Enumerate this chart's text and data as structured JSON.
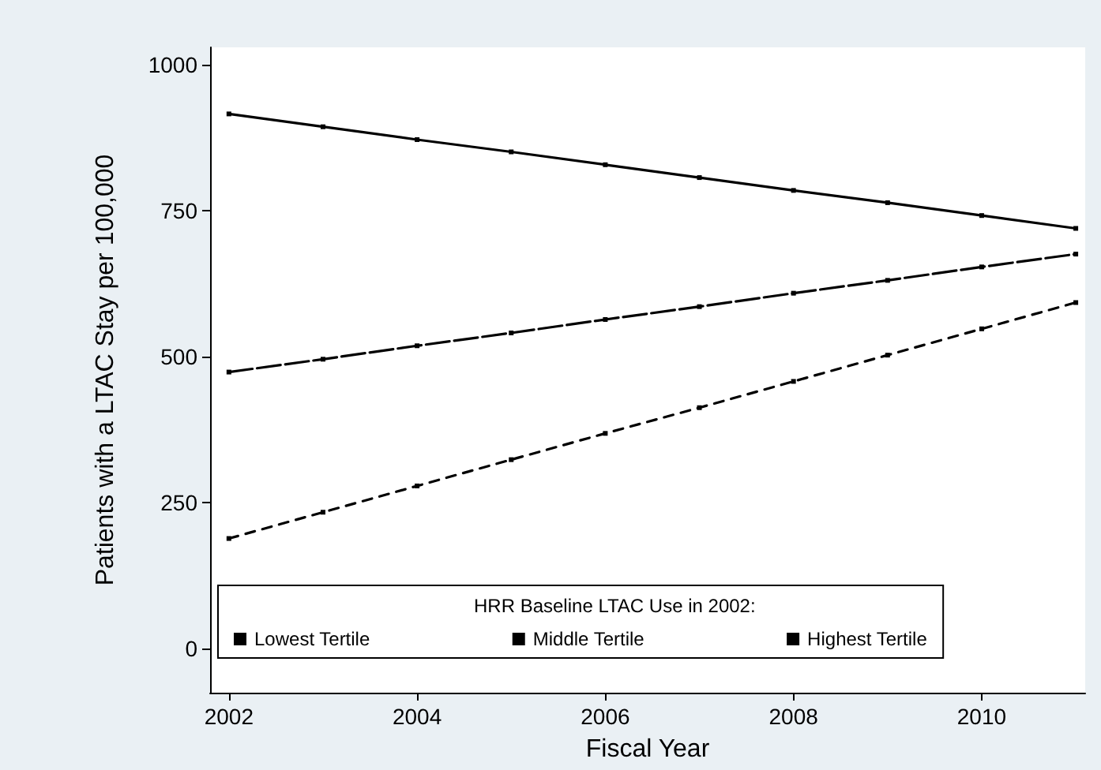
{
  "chart_data": {
    "type": "line",
    "xlabel": "Fiscal Year",
    "ylabel": "Patients with a LTAC Stay per 100,000",
    "legend_title": "HRR Baseline LTAC Use in 2002:",
    "x": [
      2002,
      2003,
      2004,
      2005,
      2006,
      2007,
      2008,
      2009,
      2010,
      2011
    ],
    "series": [
      {
        "name": "Lowest Tertile",
        "color": "#000000",
        "line_style": "dashed",
        "values": [
          189,
          234,
          279,
          324,
          369,
          413,
          458,
          503,
          548,
          593
        ]
      },
      {
        "name": "Middle Tertile",
        "color": "#000000",
        "line_style": "dashed",
        "values": [
          474,
          496,
          519,
          541,
          564,
          586,
          609,
          631,
          654,
          676
        ]
      },
      {
        "name": "Highest Tertile",
        "color": "#000000",
        "line_style": "solid",
        "values": [
          916,
          894,
          872,
          851,
          829,
          807,
          785,
          764,
          742,
          720
        ]
      }
    ],
    "xlim": [
      2001.8,
      2011.1
    ],
    "xticks": [
      2002,
      2004,
      2006,
      2008,
      2010
    ],
    "ylim": [
      -75,
      1030
    ],
    "yticks": [
      0,
      250,
      500,
      750,
      1000
    ],
    "grid": false,
    "legend": "bottom",
    "marker": "square"
  }
}
